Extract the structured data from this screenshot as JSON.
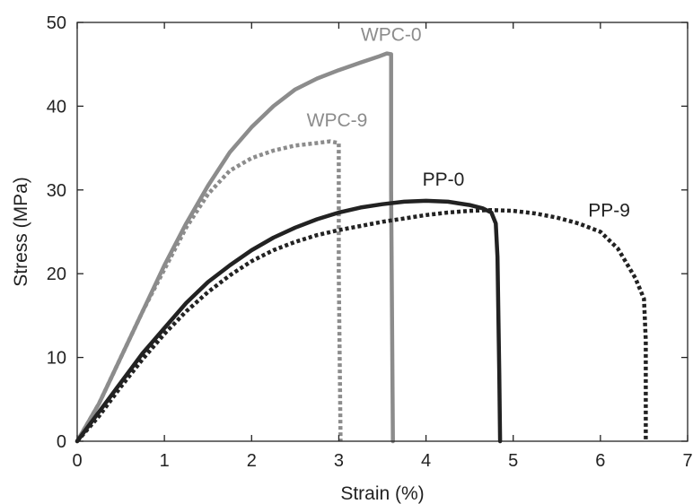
{
  "chart_data": {
    "type": "line",
    "xlabel": "Strain (%)",
    "ylabel": "Stress (MPa)",
    "xlim": [
      0,
      7
    ],
    "ylim": [
      0,
      50
    ],
    "x_ticks": [
      0,
      1,
      2,
      3,
      4,
      5,
      6,
      7
    ],
    "y_ticks": [
      0,
      10,
      20,
      30,
      40,
      50
    ],
    "grid": false,
    "legend": "none",
    "series": [
      {
        "name": "WPC-0",
        "color": "#8c8c8c",
        "style": "solid",
        "label_at": [
          3.6,
          47.8
        ],
        "points": [
          [
            0,
            0
          ],
          [
            0.25,
            4.5
          ],
          [
            0.5,
            10
          ],
          [
            0.75,
            15.5
          ],
          [
            1,
            21
          ],
          [
            1.25,
            26
          ],
          [
            1.5,
            30.5
          ],
          [
            1.75,
            34.5
          ],
          [
            2,
            37.5
          ],
          [
            2.25,
            40
          ],
          [
            2.5,
            42
          ],
          [
            2.75,
            43.3
          ],
          [
            3,
            44.3
          ],
          [
            3.25,
            45.2
          ],
          [
            3.45,
            45.9
          ],
          [
            3.55,
            46.3
          ],
          [
            3.6,
            46.2
          ],
          [
            3.6,
            30
          ],
          [
            3.62,
            0
          ]
        ]
      },
      {
        "name": "WPC-9",
        "color": "#8c8c8c",
        "style": "dotted",
        "label_at": [
          2.98,
          37.6
        ],
        "points": [
          [
            0,
            0
          ],
          [
            0.25,
            4.5
          ],
          [
            0.5,
            10
          ],
          [
            0.75,
            15.5
          ],
          [
            1,
            20.5
          ],
          [
            1.25,
            25.5
          ],
          [
            1.5,
            29.5
          ],
          [
            1.75,
            32.3
          ],
          [
            2,
            33.8
          ],
          [
            2.25,
            34.7
          ],
          [
            2.5,
            35.3
          ],
          [
            2.75,
            35.6
          ],
          [
            2.9,
            35.8
          ],
          [
            3,
            35.6
          ],
          [
            3,
            20
          ],
          [
            3.02,
            0
          ]
        ]
      },
      {
        "name": "PP-0",
        "color": "#222222",
        "style": "solid",
        "label_at": [
          4.2,
          30.5
        ],
        "points": [
          [
            0,
            0
          ],
          [
            0.25,
            3.5
          ],
          [
            0.5,
            7
          ],
          [
            0.75,
            10.5
          ],
          [
            1,
            13.5
          ],
          [
            1.25,
            16.5
          ],
          [
            1.5,
            19
          ],
          [
            1.75,
            21
          ],
          [
            2,
            22.8
          ],
          [
            2.25,
            24.3
          ],
          [
            2.5,
            25.5
          ],
          [
            2.75,
            26.5
          ],
          [
            3,
            27.3
          ],
          [
            3.25,
            27.9
          ],
          [
            3.5,
            28.3
          ],
          [
            3.75,
            28.6
          ],
          [
            4,
            28.7
          ],
          [
            4.25,
            28.6
          ],
          [
            4.5,
            28.2
          ],
          [
            4.65,
            27.8
          ],
          [
            4.75,
            27.3
          ],
          [
            4.8,
            26
          ],
          [
            4.82,
            22
          ],
          [
            4.83,
            15
          ],
          [
            4.84,
            8
          ],
          [
            4.85,
            0
          ]
        ]
      },
      {
        "name": "PP-9",
        "color": "#222222",
        "style": "dotted",
        "label_at": [
          6.1,
          26.8
        ],
        "points": [
          [
            0,
            0
          ],
          [
            0.25,
            3
          ],
          [
            0.5,
            6.5
          ],
          [
            0.75,
            9.8
          ],
          [
            1,
            12.8
          ],
          [
            1.25,
            15.5
          ],
          [
            1.5,
            17.8
          ],
          [
            1.75,
            19.8
          ],
          [
            2,
            21.5
          ],
          [
            2.25,
            22.8
          ],
          [
            2.5,
            23.8
          ],
          [
            2.75,
            24.6
          ],
          [
            3,
            25.2
          ],
          [
            3.25,
            25.7
          ],
          [
            3.5,
            26.2
          ],
          [
            3.75,
            26.6
          ],
          [
            4,
            27
          ],
          [
            4.25,
            27.3
          ],
          [
            4.5,
            27.5
          ],
          [
            4.75,
            27.6
          ],
          [
            5,
            27.5
          ],
          [
            5.25,
            27.2
          ],
          [
            5.5,
            26.7
          ],
          [
            5.75,
            26
          ],
          [
            6,
            25
          ],
          [
            6.2,
            23
          ],
          [
            6.4,
            19.5
          ],
          [
            6.5,
            17
          ],
          [
            6.52,
            12
          ],
          [
            6.52,
            6
          ],
          [
            6.52,
            0
          ]
        ]
      }
    ]
  }
}
